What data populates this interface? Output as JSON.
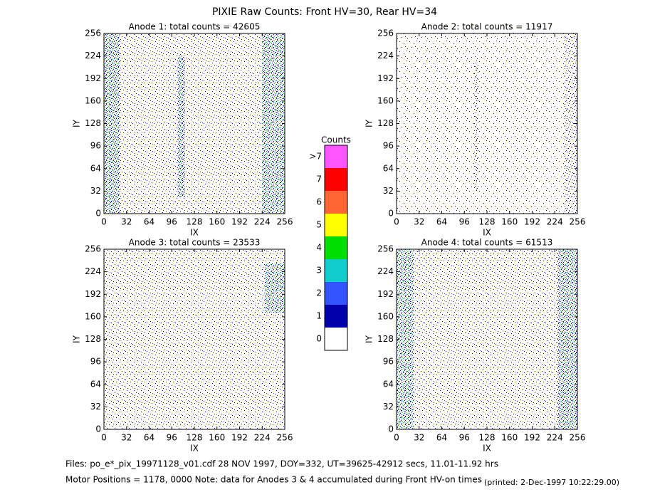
{
  "title": "PIXIE Raw Counts:  Front HV=30, Rear HV=34",
  "chart_data": [
    {
      "type": "heatmap",
      "title": "Anode 1: total counts = 42605",
      "x_label": "IX",
      "y_label": "IY",
      "xlim": [
        0,
        256
      ],
      "ylim": [
        0,
        256
      ],
      "xticks": [
        0,
        32,
        64,
        96,
        128,
        160,
        192,
        224,
        256
      ],
      "yticks": [
        0,
        32,
        64,
        96,
        128,
        160,
        192,
        224,
        256
      ]
    },
    {
      "type": "heatmap",
      "title": "Anode 2: total counts = 11917",
      "x_label": "IX",
      "y_label": "IY",
      "xlim": [
        0,
        256
      ],
      "ylim": [
        0,
        256
      ],
      "xticks": [
        0,
        32,
        64,
        96,
        128,
        160,
        192,
        224,
        256
      ],
      "yticks": [
        0,
        32,
        64,
        96,
        128,
        160,
        192,
        224,
        256
      ]
    },
    {
      "type": "heatmap",
      "title": "Anode 3: total counts = 23533",
      "x_label": "IX",
      "y_label": "IY",
      "xlim": [
        0,
        256
      ],
      "ylim": [
        0,
        256
      ],
      "xticks": [
        0,
        32,
        64,
        96,
        128,
        160,
        192,
        224,
        256
      ],
      "yticks": [
        0,
        32,
        64,
        96,
        128,
        160,
        192,
        224,
        256
      ]
    },
    {
      "type": "heatmap",
      "title": "Anode 4: total counts = 61513",
      "x_label": "IX",
      "y_label": "IY",
      "xlim": [
        0,
        256
      ],
      "ylim": [
        0,
        256
      ],
      "xticks": [
        0,
        32,
        64,
        96,
        128,
        160,
        192,
        224,
        256
      ],
      "yticks": [
        0,
        32,
        64,
        96,
        128,
        160,
        192,
        224,
        256
      ]
    }
  ],
  "colorbar": {
    "title": "Counts",
    "labels": [
      "0",
      "1",
      "2",
      "3",
      "4",
      "5",
      "6",
      "7",
      ">7"
    ],
    "colors": [
      "#ffffff",
      "#0000aa",
      "#3355ff",
      "#11cccc",
      "#00dd00",
      "#ffff00",
      "#ff6633",
      "#ff0000",
      "#ff55ff"
    ]
  },
  "footer": {
    "files": "Files: po_e*_pix_19971128_v01.cdf    28 NOV 1997, DOY=332, UT=39625-42912 secs, 11.01-11.92 hrs",
    "motor": "Motor Positions = 1178, 0000   Note: data for Anodes 3 & 4 accumulated during Front HV-on times",
    "printed": "(printed:  2-Dec-1997 10:22:29.00)"
  }
}
